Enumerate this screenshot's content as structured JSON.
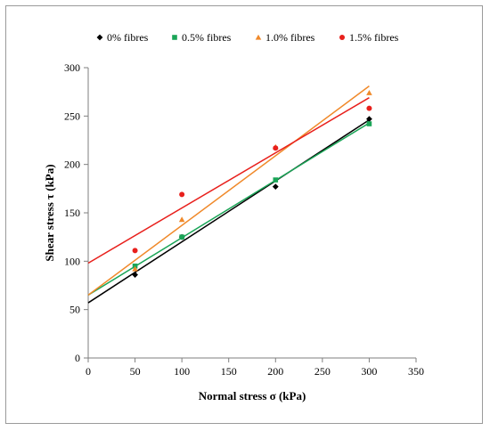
{
  "chart_data": {
    "type": "scatter",
    "title": "",
    "xlabel": "Normal stress σ (kPa)",
    "ylabel": "Shear stress τ (kPa)",
    "xlim": [
      0,
      350
    ],
    "ylim": [
      0,
      300
    ],
    "xticks": [
      0,
      50,
      100,
      150,
      200,
      250,
      300,
      350
    ],
    "yticks": [
      0,
      50,
      100,
      150,
      200,
      250,
      300
    ],
    "grid": false,
    "legend_position": "top",
    "series": [
      {
        "name": "0% fibres",
        "marker": "diamond",
        "color": "#000000",
        "x": [
          50,
          100,
          200,
          300
        ],
        "y": [
          86,
          125,
          177,
          247
        ],
        "trendline": [
          57,
          0.63
        ]
      },
      {
        "name": "0.5% fibres",
        "marker": "square",
        "color": "#1aa557",
        "x": [
          50,
          100,
          200,
          300
        ],
        "y": [
          95,
          125,
          184,
          242
        ],
        "trendline": [
          65,
          0.593
        ]
      },
      {
        "name": "1.0% fibres",
        "marker": "triangle",
        "color": "#f0892a",
        "x": [
          50,
          100,
          200,
          300
        ],
        "y": [
          92,
          143,
          218,
          274
        ],
        "trendline": [
          65,
          0.72
        ]
      },
      {
        "name": "1.5% fibres",
        "marker": "circle",
        "color": "#e8201c",
        "x": [
          50,
          100,
          200,
          300
        ],
        "y": [
          111,
          169,
          217,
          258
        ],
        "trendline": [
          98,
          0.57
        ]
      }
    ]
  }
}
